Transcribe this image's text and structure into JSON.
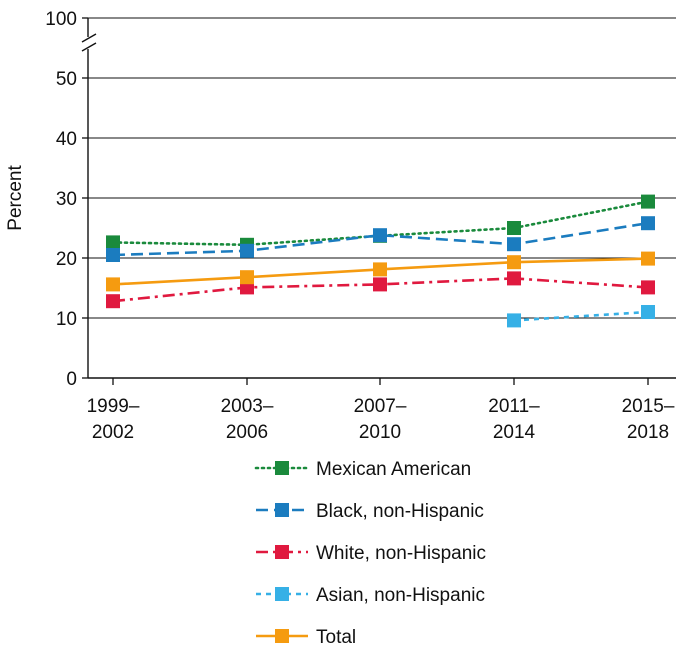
{
  "chart_data": {
    "type": "line",
    "title": "",
    "xlabel": "",
    "ylabel": "Percent",
    "categories": [
      "1999–2002",
      "2003–2006",
      "2007–2010",
      "2011–2014",
      "2015–2018"
    ],
    "x_tick_labels": [
      [
        "1999–",
        "2002"
      ],
      [
        "2003–",
        "2006"
      ],
      [
        "2007–",
        "2010"
      ],
      [
        "2011–",
        "2014"
      ],
      [
        "2015–",
        "2018"
      ]
    ],
    "y_ticks": [
      "0",
      "10",
      "20",
      "30",
      "40",
      "50",
      "100"
    ],
    "ylim": [
      0,
      50
    ],
    "y_axis_break": {
      "above": 50,
      "top_value": 100
    },
    "grid": true,
    "legend_position": "bottom",
    "series": [
      {
        "name": "Mexican American",
        "color": "#1a8a3c",
        "dash": "dotted",
        "values": [
          22.6,
          22.2,
          23.7,
          25.0,
          29.4
        ]
      },
      {
        "name": "Black, non-Hispanic",
        "color": "#1b7cbf",
        "dash": "dashed",
        "values": [
          20.5,
          21.2,
          23.8,
          22.3,
          25.8
        ]
      },
      {
        "name": "White, non-Hispanic",
        "color": "#e0193f",
        "dash": "dash-dot",
        "values": [
          12.8,
          15.1,
          15.6,
          16.6,
          15.1
        ]
      },
      {
        "name": "Asian, non-Hispanic",
        "color": "#36b0e6",
        "dash": "short-dash",
        "values": [
          null,
          null,
          null,
          9.6,
          11.0
        ]
      },
      {
        "name": "Total",
        "color": "#f59b10",
        "dash": "solid",
        "values": [
          15.6,
          16.8,
          18.1,
          19.3,
          19.9
        ]
      }
    ]
  }
}
